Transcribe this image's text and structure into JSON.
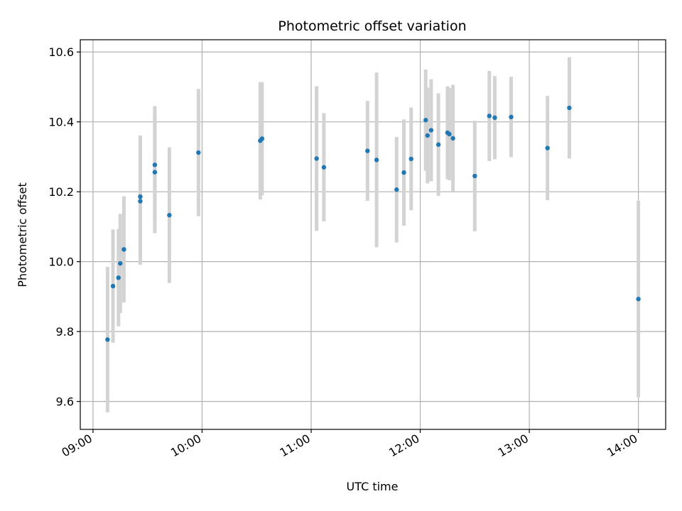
{
  "chart_data": {
    "type": "scatter",
    "title": "Photometric offset variation",
    "xlabel": "UTC time",
    "ylabel": "Photometric offset",
    "xlim": [
      "08:53",
      "14:15"
    ],
    "ylim": [
      9.52,
      10.635
    ],
    "x_ticks": [
      "09:00",
      "10:00",
      "11:00",
      "12:00",
      "13:00",
      "14:00"
    ],
    "y_ticks": [
      9.6,
      9.8,
      10.0,
      10.2,
      10.4,
      10.6
    ],
    "grid": true,
    "colors": {
      "point": "#1f77b4",
      "errorbar": "#d3d3d3",
      "grid": "#b0b0b0"
    },
    "points": [
      {
        "time": "09:08",
        "offset": 9.777,
        "err": 0.208
      },
      {
        "time": "09:11",
        "offset": 9.93,
        "err": 0.162
      },
      {
        "time": "09:14",
        "offset": 9.954,
        "err": 0.139
      },
      {
        "time": "09:15",
        "offset": 9.995,
        "err": 0.142
      },
      {
        "time": "09:17",
        "offset": 10.035,
        "err": 0.152
      },
      {
        "time": "09:26",
        "offset": 10.173,
        "err": 0.182
      },
      {
        "time": "09:26",
        "offset": 10.186,
        "err": 0.175
      },
      {
        "time": "09:34",
        "offset": 10.256,
        "err": 0.175
      },
      {
        "time": "09:34",
        "offset": 10.277,
        "err": 0.168
      },
      {
        "time": "09:42",
        "offset": 10.133,
        "err": 0.194
      },
      {
        "time": "09:58",
        "offset": 10.312,
        "err": 0.182
      },
      {
        "time": "10:32",
        "offset": 10.346,
        "err": 0.168
      },
      {
        "time": "10:33",
        "offset": 10.352,
        "err": 0.162
      },
      {
        "time": "11:03",
        "offset": 10.295,
        "err": 0.207
      },
      {
        "time": "11:07",
        "offset": 10.27,
        "err": 0.155
      },
      {
        "time": "11:31",
        "offset": 10.317,
        "err": 0.143
      },
      {
        "time": "11:36",
        "offset": 10.291,
        "err": 0.25
      },
      {
        "time": "11:47",
        "offset": 10.206,
        "err": 0.151
      },
      {
        "time": "11:51",
        "offset": 10.255,
        "err": 0.152
      },
      {
        "time": "11:55",
        "offset": 10.294,
        "err": 0.147
      },
      {
        "time": "12:03",
        "offset": 10.405,
        "err": 0.145
      },
      {
        "time": "12:04",
        "offset": 10.361,
        "err": 0.137
      },
      {
        "time": "12:06",
        "offset": 10.376,
        "err": 0.146
      },
      {
        "time": "12:10",
        "offset": 10.335,
        "err": 0.147
      },
      {
        "time": "12:15",
        "offset": 10.369,
        "err": 0.133
      },
      {
        "time": "12:16",
        "offset": 10.365,
        "err": 0.132
      },
      {
        "time": "12:18",
        "offset": 10.353,
        "err": 0.153
      },
      {
        "time": "12:30",
        "offset": 10.245,
        "err": 0.158
      },
      {
        "time": "12:38",
        "offset": 10.417,
        "err": 0.129
      },
      {
        "time": "12:41",
        "offset": 10.412,
        "err": 0.119
      },
      {
        "time": "12:50",
        "offset": 10.414,
        "err": 0.115
      },
      {
        "time": "13:10",
        "offset": 10.325,
        "err": 0.149
      },
      {
        "time": "13:22",
        "offset": 10.44,
        "err": 0.145
      },
      {
        "time": "14:00",
        "offset": 9.893,
        "err": 0.281
      }
    ]
  }
}
